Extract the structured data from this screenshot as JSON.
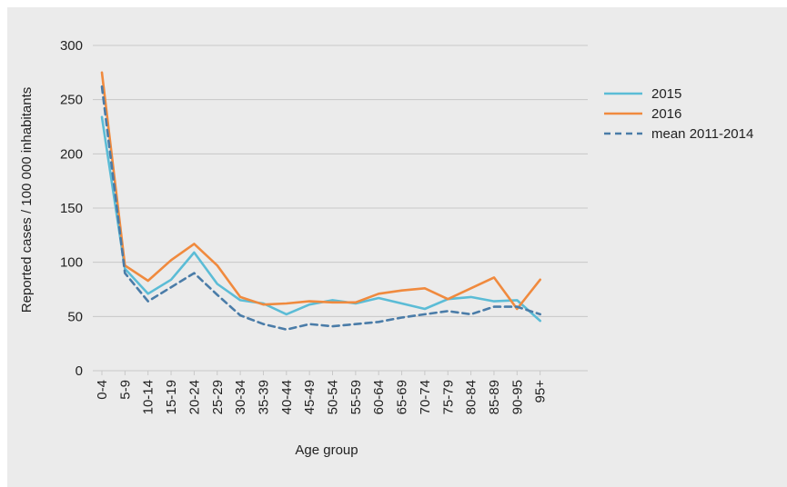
{
  "chart_data": {
    "type": "line",
    "xlabel": "Age group",
    "ylabel": "Reported cases / 100 000 inhabitants",
    "ylim": [
      0,
      300
    ],
    "yticks": [
      0,
      50,
      100,
      150,
      200,
      250,
      300
    ],
    "grid": "horizontal",
    "legend_position": "right",
    "categories": [
      "0-4",
      "5-9",
      "10-14",
      "15-19",
      "20-24",
      "25-29",
      "30-34",
      "35-39",
      "40-44",
      "45-49",
      "50-54",
      "55-59",
      "60-64",
      "65-69",
      "70-74",
      "75-79",
      "80-84",
      "85-89",
      "90-95",
      "95+"
    ],
    "series": [
      {
        "name": "2015",
        "color": "#5bbcd6",
        "dash": "solid",
        "values": [
          234,
          94,
          71,
          84,
          109,
          80,
          65,
          62,
          52,
          61,
          65,
          62,
          67,
          62,
          57,
          66,
          68,
          64,
          65,
          46
        ]
      },
      {
        "name": "2016",
        "color": "#f08a3e",
        "dash": "solid",
        "values": [
          275,
          97,
          83,
          102,
          117,
          97,
          68,
          61,
          62,
          64,
          63,
          63,
          71,
          74,
          76,
          66,
          76,
          86,
          57,
          84
        ]
      },
      {
        "name": "mean 2011-2014",
        "color": "#4a7ca8",
        "dash": "dashed",
        "values": [
          262,
          90,
          64,
          77,
          90,
          70,
          51,
          43,
          38,
          43,
          41,
          43,
          45,
          49,
          52,
          55,
          52,
          59,
          59,
          52
        ]
      }
    ]
  }
}
